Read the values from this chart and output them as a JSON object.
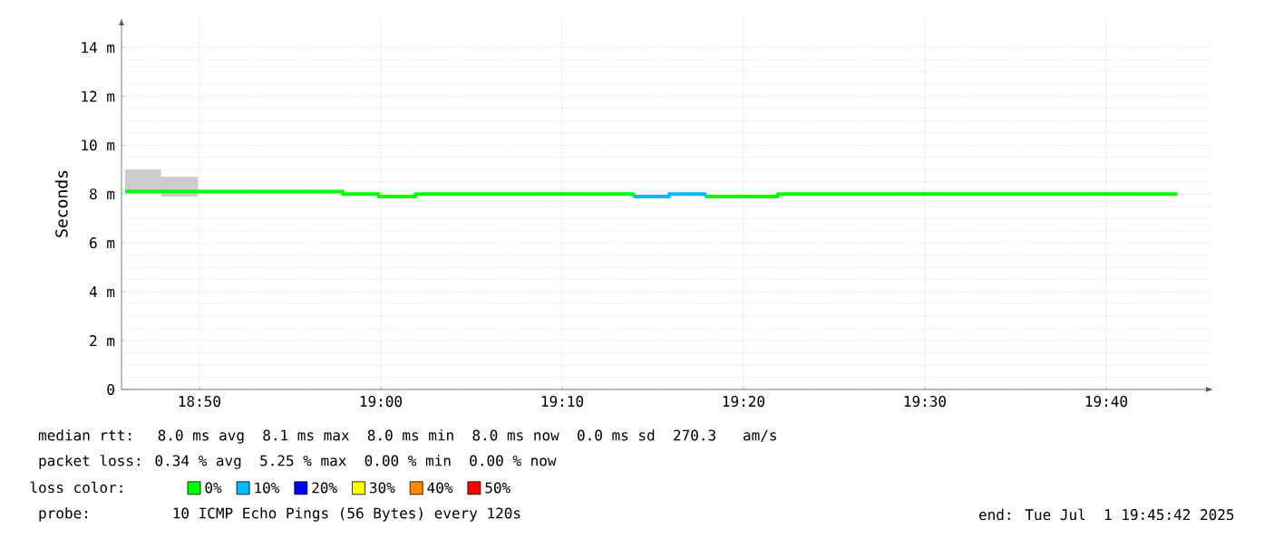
{
  "chart_data": {
    "type": "step",
    "x": [
      18.765,
      18.798,
      18.832,
      18.865,
      18.898,
      18.932,
      18.965,
      18.998,
      19.032,
      19.065,
      19.098,
      19.132,
      19.165,
      19.198,
      19.232,
      19.265,
      19.298,
      19.332,
      19.365,
      19.398,
      19.432,
      19.465,
      19.498,
      19.532,
      19.565,
      19.598,
      19.632,
      19.665,
      19.698,
      19.732
    ],
    "series": [
      {
        "name": "0%",
        "color": "#00ff00",
        "values": [
          8.1,
          8.1,
          8.1,
          8.1,
          8.1,
          8.1,
          8.0,
          7.9,
          8.0,
          8.0,
          8.0,
          8.0,
          8.0,
          8.0,
          7.9,
          null,
          7.9,
          7.9,
          8.0,
          8.0,
          8.0,
          8.0,
          8.0,
          8.0,
          8.0,
          8.0,
          8.0,
          8.0,
          8.0,
          8.0
        ],
        "lower": [
          8.1,
          7.9,
          7.9,
          null,
          null,
          null,
          null,
          null,
          null,
          null,
          null,
          null,
          null,
          null,
          null,
          null,
          null,
          null,
          null,
          null,
          null,
          null,
          null,
          null,
          null,
          null,
          null,
          null,
          null,
          null
        ],
        "upper": [
          9.0,
          8.7,
          8.7,
          null,
          null,
          null,
          null,
          null,
          null,
          null,
          null,
          null,
          null,
          null,
          null,
          null,
          null,
          null,
          null,
          null,
          null,
          null,
          null,
          null,
          null,
          null,
          null,
          null,
          null,
          null
        ]
      },
      {
        "name": "10%",
        "color": "#00bbff",
        "values": [
          null,
          null,
          null,
          null,
          null,
          null,
          null,
          null,
          null,
          null,
          null,
          null,
          null,
          null,
          7.9,
          8.0,
          7.9,
          null,
          null,
          null,
          null,
          null,
          null,
          null,
          null,
          null,
          null,
          null,
          null,
          null
        ]
      },
      {
        "name": "20%",
        "color": "#0000ff",
        "values": [
          null,
          null,
          null,
          null,
          null,
          null,
          null,
          null,
          null,
          null,
          null,
          null,
          null,
          null,
          null,
          null,
          null,
          null,
          null,
          null,
          null,
          null,
          null,
          null,
          null,
          null,
          null,
          null,
          null,
          null
        ]
      },
      {
        "name": "30%",
        "color": "#ffff00",
        "values": [
          null,
          null,
          null,
          null,
          null,
          null,
          null,
          null,
          null,
          null,
          null,
          null,
          null,
          null,
          null,
          null,
          null,
          null,
          null,
          null,
          null,
          null,
          null,
          null,
          null,
          null,
          null,
          null,
          null,
          null
        ]
      },
      {
        "name": "40%",
        "color": "#ff8800",
        "values": [
          null,
          null,
          null,
          null,
          null,
          null,
          null,
          null,
          null,
          null,
          null,
          null,
          null,
          null,
          null,
          null,
          null,
          null,
          null,
          null,
          null,
          null,
          null,
          null,
          null,
          null,
          null,
          null,
          null,
          null
        ]
      },
      {
        "name": "50%",
        "color": "#ff0000",
        "values": [
          null,
          null,
          null,
          null,
          null,
          null,
          null,
          null,
          null,
          null,
          null,
          null,
          null,
          null,
          null,
          null,
          null,
          null,
          null,
          null,
          null,
          null,
          null,
          null,
          null,
          null,
          null,
          null,
          null,
          null
        ]
      }
    ],
    "xlim": [
      18.7617,
      19.765
    ],
    "xticks": [
      {
        "value": 18.8333,
        "label": "18:50"
      },
      {
        "value": 19.0,
        "label": "19:00"
      },
      {
        "value": 19.1667,
        "label": "19:10"
      },
      {
        "value": 19.3333,
        "label": "19:20"
      },
      {
        "value": 19.5,
        "label": "19:30"
      },
      {
        "value": 19.6667,
        "label": "19:40"
      }
    ],
    "ylim": [
      0,
      15.2
    ],
    "yticks": [
      0,
      {
        "value": 2,
        "label": "2 m"
      },
      {
        "value": 4,
        "label": "4 m"
      },
      {
        "value": 6,
        "label": "6 m"
      },
      {
        "value": 8,
        "label": "8 m"
      },
      {
        "value": 10,
        "label": "10 m"
      },
      {
        "value": 12,
        "label": "12 m"
      },
      {
        "value": 14,
        "label": "14 m"
      }
    ],
    "ylabel": "Seconds",
    "grid": true,
    "legend": "bottom",
    "legend_title": "loss color:",
    "annotations": [
      "median rtt:  8.0 ms avg  8.1 ms max  8.0 ms min  8.0 ms now  0.0 ms sd  270.3   am/s",
      "packet loss: 0.34 % avg  5.25 % max  0.00 % min  0.00 % now",
      "probe:       10 ICMP Echo Pings (56 Bytes) every 120s",
      "end: Tue Jul  1 19:45:42 2025"
    ]
  }
}
